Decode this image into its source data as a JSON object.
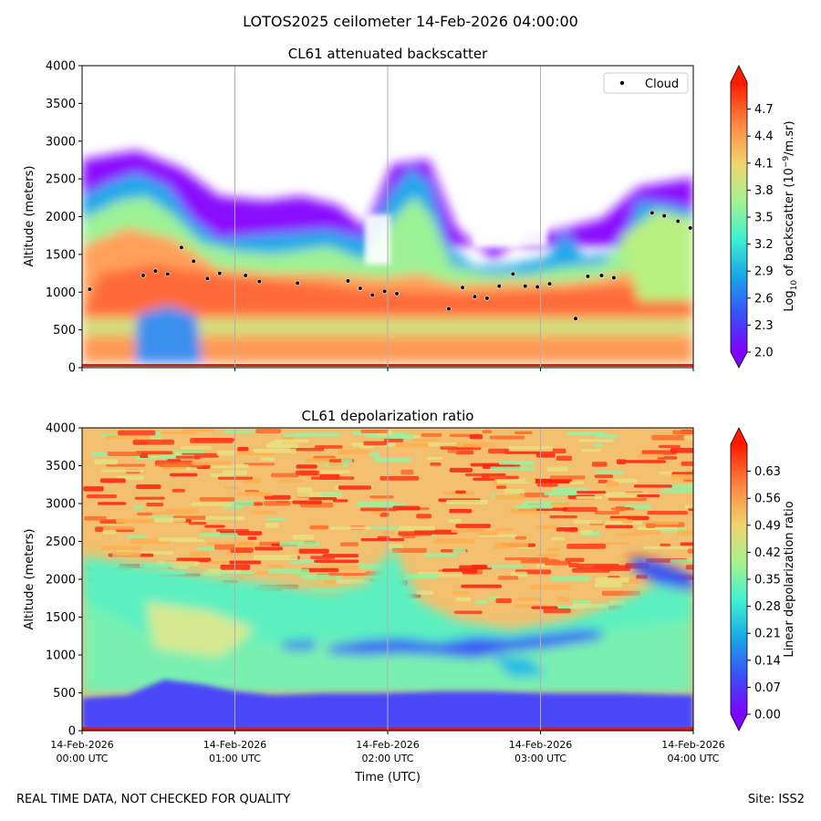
{
  "figure": {
    "title": "LOTOS2025 ceilometer 14-Feb-2026 04:00:00",
    "footer_left": "REAL TIME DATA, NOT CHECKED FOR QUALITY",
    "footer_right": "Site: ISS2"
  },
  "chart_data": [
    {
      "type": "heatmap",
      "title": "CL61 attenuated backscatter",
      "xlabel": "",
      "ylabel": "Altitude (meters)",
      "ylim": [
        0,
        4000
      ],
      "yticks": [
        "0",
        "500",
        "1000",
        "1500",
        "2000",
        "2500",
        "3000",
        "3500",
        "4000"
      ],
      "xticks": [],
      "x_range_hours_utc": [
        0,
        4
      ],
      "grid": "vertical lines at hour ticks",
      "colormap": "rainbow",
      "colorbar": {
        "label": "Log10 of backscatter (10^-9/m.sr)",
        "label_base": "Log",
        "label_sub": "10",
        "label_mid": " of backscatter (10",
        "label_sup": "−9",
        "label_end": "/m.sr)",
        "range": [
          2.0,
          5.0
        ],
        "ticks": [
          "2.0",
          "2.3",
          "2.6",
          "2.9",
          "3.2",
          "3.5",
          "3.8",
          "4.1",
          "4.4",
          "4.7"
        ],
        "extend": "both"
      },
      "legend": {
        "entries": [
          "Cloud"
        ],
        "placement": "upper right"
      },
      "cloud_points": [
        {
          "t": 0.05,
          "alt": 1040
        },
        {
          "t": 0.4,
          "alt": 1220
        },
        {
          "t": 0.48,
          "alt": 1280
        },
        {
          "t": 0.56,
          "alt": 1240
        },
        {
          "t": 0.65,
          "alt": 1590
        },
        {
          "t": 0.73,
          "alt": 1410
        },
        {
          "t": 0.82,
          "alt": 1180
        },
        {
          "t": 0.9,
          "alt": 1250
        },
        {
          "t": 1.07,
          "alt": 1220
        },
        {
          "t": 1.16,
          "alt": 1140
        },
        {
          "t": 1.41,
          "alt": 1120
        },
        {
          "t": 1.74,
          "alt": 1150
        },
        {
          "t": 1.82,
          "alt": 1050
        },
        {
          "t": 1.9,
          "alt": 960
        },
        {
          "t": 1.98,
          "alt": 1010
        },
        {
          "t": 2.06,
          "alt": 980
        },
        {
          "t": 2.4,
          "alt": 780
        },
        {
          "t": 2.49,
          "alt": 1060
        },
        {
          "t": 2.57,
          "alt": 940
        },
        {
          "t": 2.65,
          "alt": 920
        },
        {
          "t": 2.73,
          "alt": 1080
        },
        {
          "t": 2.82,
          "alt": 1240
        },
        {
          "t": 2.9,
          "alt": 1080
        },
        {
          "t": 2.98,
          "alt": 1070
        },
        {
          "t": 3.06,
          "alt": 1110
        },
        {
          "t": 3.23,
          "alt": 650
        },
        {
          "t": 3.31,
          "alt": 1210
        },
        {
          "t": 3.4,
          "alt": 1220
        },
        {
          "t": 3.48,
          "alt": 1190
        },
        {
          "t": 3.73,
          "alt": 2050
        },
        {
          "t": 3.81,
          "alt": 2010
        },
        {
          "t": 3.9,
          "alt": 1940
        },
        {
          "t": 3.98,
          "alt": 1850
        }
      ]
    },
    {
      "type": "heatmap",
      "title": "CL61 depolarization ratio",
      "xlabel": "Time (UTC)",
      "ylabel": "Altitude (meters)",
      "ylim": [
        0,
        4000
      ],
      "yticks": [
        "0",
        "500",
        "1000",
        "1500",
        "2000",
        "2500",
        "3000",
        "3500",
        "4000"
      ],
      "xticks": [
        {
          "date": "14-Feb-2026",
          "time": "00:00 UTC"
        },
        {
          "date": "14-Feb-2026",
          "time": "01:00 UTC"
        },
        {
          "date": "14-Feb-2026",
          "time": "02:00 UTC"
        },
        {
          "date": "14-Feb-2026",
          "time": "03:00 UTC"
        },
        {
          "date": "14-Feb-2026",
          "time": "04:00 UTC"
        }
      ],
      "x_range_hours_utc": [
        0,
        4
      ],
      "grid": "vertical lines at hour ticks",
      "colormap": "rainbow",
      "colorbar": {
        "label": "Linear depolarization ratio",
        "range": [
          0.0,
          0.7
        ],
        "ticks": [
          "0.00",
          "0.07",
          "0.14",
          "0.21",
          "0.28",
          "0.35",
          "0.42",
          "0.49",
          "0.56",
          "0.63"
        ],
        "extend": "both"
      }
    }
  ]
}
